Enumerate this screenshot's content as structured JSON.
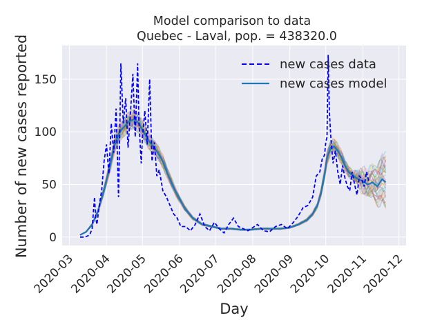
{
  "chart_data": {
    "type": "line",
    "title": "Model comparison to data",
    "subtitle": "Quebec - Laval, pop. = 438320.0",
    "xlabel": "Day",
    "ylabel": "Number of new cases reported",
    "x_ticks": [
      "2020-03",
      "2020-04",
      "2020-05",
      "2020-06",
      "2020-07",
      "2020-08",
      "2020-09",
      "2020-10",
      "2020-11",
      "2020-12"
    ],
    "y_ticks": [
      0,
      50,
      100,
      150
    ],
    "xlim": [
      "2020-02-24",
      "2020-12-07"
    ],
    "ylim": [
      -8,
      182
    ],
    "grid": true,
    "legend_position": "top-right",
    "series": [
      {
        "name": "new cases data",
        "style": "dashed",
        "color": "#0000ff",
        "x": [
          "2020-03-10",
          "2020-03-14",
          "2020-03-18",
          "2020-03-20",
          "2020-03-22",
          "2020-03-23",
          "2020-03-24",
          "2020-03-26",
          "2020-03-28",
          "2020-03-30",
          "2020-04-01",
          "2020-04-03",
          "2020-04-05",
          "2020-04-07",
          "2020-04-09",
          "2020-04-11",
          "2020-04-12",
          "2020-04-13",
          "2020-04-15",
          "2020-04-17",
          "2020-04-19",
          "2020-04-21",
          "2020-04-23",
          "2020-04-25",
          "2020-04-27",
          "2020-04-28",
          "2020-04-30",
          "2020-05-01",
          "2020-05-03",
          "2020-05-05",
          "2020-05-07",
          "2020-05-09",
          "2020-05-11",
          "2020-05-13",
          "2020-05-15",
          "2020-05-18",
          "2020-05-21",
          "2020-05-24",
          "2020-05-27",
          "2020-05-30",
          "2020-06-02",
          "2020-06-06",
          "2020-06-10",
          "2020-06-14",
          "2020-06-18",
          "2020-06-22",
          "2020-06-26",
          "2020-06-30",
          "2020-07-04",
          "2020-07-08",
          "2020-07-12",
          "2020-07-16",
          "2020-07-20",
          "2020-07-24",
          "2020-07-28",
          "2020-08-01",
          "2020-08-05",
          "2020-08-10",
          "2020-08-15",
          "2020-08-20",
          "2020-08-25",
          "2020-08-30",
          "2020-09-04",
          "2020-09-08",
          "2020-09-12",
          "2020-09-16",
          "2020-09-20",
          "2020-09-23",
          "2020-09-26",
          "2020-09-28",
          "2020-09-30",
          "2020-10-01",
          "2020-10-02",
          "2020-10-03",
          "2020-10-04",
          "2020-10-05",
          "2020-10-07",
          "2020-10-09",
          "2020-10-11",
          "2020-10-13",
          "2020-10-15",
          "2020-10-17",
          "2020-10-19",
          "2020-10-21",
          "2020-10-23",
          "2020-10-25",
          "2020-10-27",
          "2020-10-29",
          "2020-10-31",
          "2020-11-02",
          "2020-11-04",
          "2020-11-06"
        ],
        "y": [
          0,
          0,
          2,
          8,
          38,
          18,
          12,
          30,
          45,
          72,
          88,
          60,
          108,
          80,
          122,
          38,
          95,
          165,
          108,
          132,
          85,
          118,
          155,
          95,
          165,
          110,
          70,
          95,
          120,
          88,
          150,
          72,
          90,
          58,
          64,
          44,
          38,
          30,
          22,
          18,
          10,
          10,
          6,
          12,
          22,
          10,
          6,
          14,
          8,
          4,
          12,
          18,
          10,
          8,
          6,
          9,
          12,
          6,
          5,
          10,
          12,
          8,
          14,
          20,
          28,
          30,
          38,
          58,
          62,
          74,
          78,
          90,
          95,
          173,
          120,
          98,
          70,
          82,
          62,
          50,
          68,
          56,
          48,
          44,
          62,
          50,
          40,
          58,
          55,
          48,
          62,
          52
        ]
      },
      {
        "name": "new cases model",
        "style": "solid",
        "color": "#1f77b4",
        "x": [
          "2020-03-10",
          "2020-03-15",
          "2020-03-20",
          "2020-03-25",
          "2020-03-30",
          "2020-04-04",
          "2020-04-08",
          "2020-04-12",
          "2020-04-16",
          "2020-04-20",
          "2020-04-24",
          "2020-04-28",
          "2020-05-02",
          "2020-05-06",
          "2020-05-10",
          "2020-05-14",
          "2020-05-18",
          "2020-05-22",
          "2020-05-26",
          "2020-05-30",
          "2020-06-05",
          "2020-06-12",
          "2020-06-20",
          "2020-06-28",
          "2020-07-06",
          "2020-07-14",
          "2020-07-22",
          "2020-07-30",
          "2020-08-08",
          "2020-08-16",
          "2020-08-24",
          "2020-09-01",
          "2020-09-08",
          "2020-09-15",
          "2020-09-20",
          "2020-09-24",
          "2020-09-27",
          "2020-09-30",
          "2020-10-02",
          "2020-10-05",
          "2020-10-08",
          "2020-10-11",
          "2020-10-14",
          "2020-10-17",
          "2020-10-20",
          "2020-10-24",
          "2020-10-28",
          "2020-11-01",
          "2020-11-05",
          "2020-11-09",
          "2020-11-13",
          "2020-11-17",
          "2020-11-20"
        ],
        "y": [
          2,
          5,
          12,
          25,
          45,
          68,
          88,
          100,
          105,
          110,
          112,
          108,
          100,
          92,
          86,
          80,
          72,
          60,
          50,
          40,
          28,
          18,
          12,
          10,
          8,
          8,
          7,
          7,
          8,
          8,
          8,
          9,
          12,
          16,
          22,
          30,
          42,
          60,
          75,
          85,
          86,
          82,
          76,
          68,
          62,
          58,
          55,
          53,
          50,
          52,
          48,
          55,
          52
        ]
      }
    ]
  }
}
